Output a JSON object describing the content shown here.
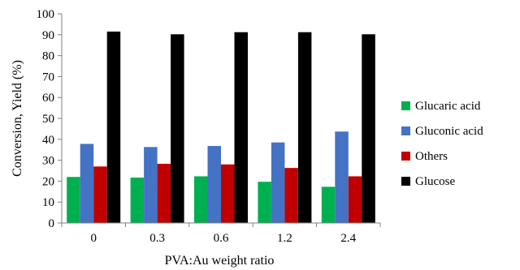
{
  "chart_data": {
    "type": "bar",
    "xlabel": "PVA:Au weight ratio",
    "ylabel": "Conversion, Yield (%)",
    "ylim": [
      0,
      100
    ],
    "yticks": [
      0,
      10,
      20,
      30,
      40,
      50,
      60,
      70,
      80,
      90,
      100
    ],
    "categories": [
      "0",
      "0.3",
      "0.6",
      "1.2",
      "2.4"
    ],
    "grid": false,
    "legend_position": "right",
    "series": [
      {
        "name": "Glucaric acid",
        "color": "#00b050",
        "values": [
          22,
          21.7,
          22.3,
          19.7,
          17.3
        ]
      },
      {
        "name": "Gluconic acid",
        "color": "#4472c4",
        "values": [
          37.8,
          36.3,
          36.8,
          38.5,
          43.7
        ]
      },
      {
        "name": "Others",
        "color": "#c00000",
        "values": [
          27,
          28.3,
          28,
          26.3,
          22.3
        ]
      },
      {
        "name": "Glucose",
        "color": "#000000",
        "values": [
          91.5,
          90.2,
          91.2,
          91.2,
          90.2
        ]
      }
    ]
  }
}
